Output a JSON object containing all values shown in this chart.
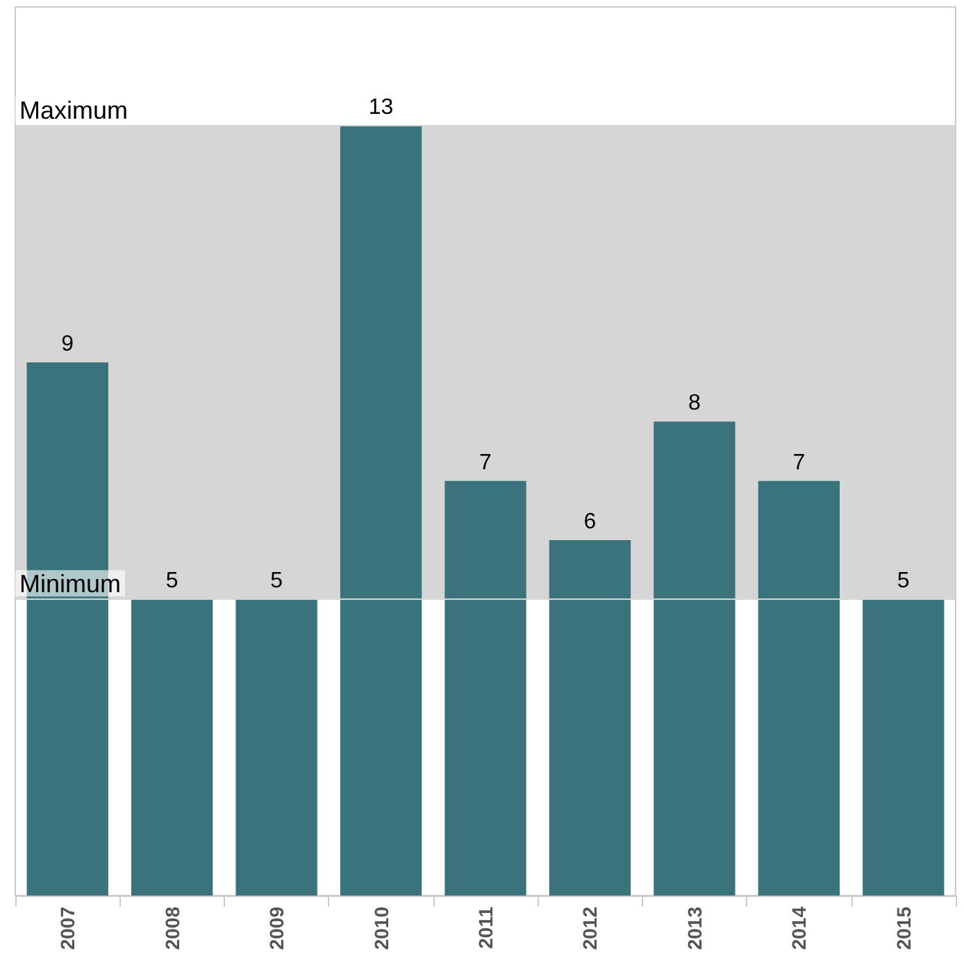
{
  "chart_data": {
    "type": "bar",
    "categories": [
      "2007",
      "2008",
      "2009",
      "2010",
      "2011",
      "2012",
      "2013",
      "2014",
      "2015"
    ],
    "series": [
      {
        "color": "#3a737b",
        "values": [
          9,
          5,
          5,
          13,
          7,
          6,
          8,
          7,
          5
        ]
      }
    ],
    "ylim": [
      0,
      15
    ],
    "tick_labels": "x",
    "data_labels": true,
    "bands": [
      {
        "axis": "y",
        "from": 5,
        "to": 13,
        "color": "#d6d6d6"
      }
    ],
    "ref_lines": [
      {
        "axis": "y",
        "value": 13,
        "label": "Maximum",
        "color": "#d6d6d6"
      },
      {
        "axis": "y",
        "value": 5,
        "label": "Minimum",
        "color": "#d6d6d6"
      }
    ]
  }
}
